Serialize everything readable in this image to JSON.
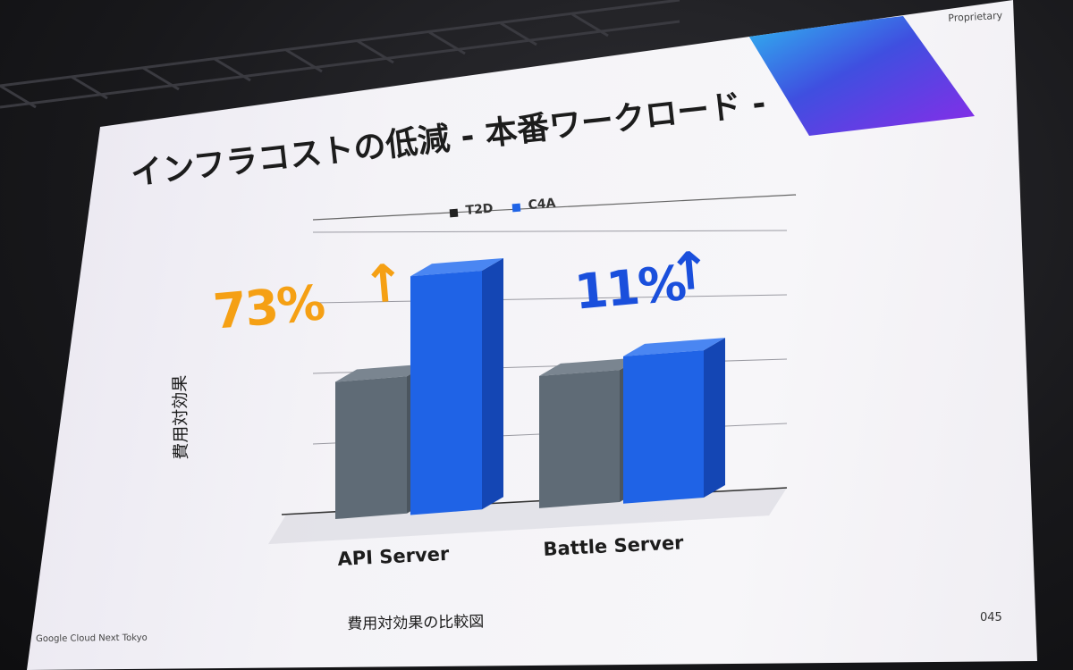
{
  "slide": {
    "proprietary": "Proprietary",
    "title": "インフラコストの低減 - 本番ワークロード -",
    "caption": "費用対効果の比較図",
    "footer": "Google Cloud Next Tokyo",
    "page_number": "045"
  },
  "colors": {
    "t2d": "#5f6b76",
    "c4a": "#1f63e6",
    "api_highlight": "#f5a014",
    "battle_highlight": "#1a4fdc"
  },
  "chart_data": {
    "type": "bar",
    "title": "",
    "ylabel": "費用対効果",
    "xlabel": "",
    "categories": [
      "API Server",
      "Battle Server"
    ],
    "series": [
      {
        "name": "T2D",
        "values": [
          1.0,
          1.0
        ]
      },
      {
        "name": "C4A",
        "values": [
          1.73,
          1.11
        ]
      }
    ],
    "ylim": [
      0,
      2
    ],
    "grid": true,
    "legend": "top",
    "annotations": [
      {
        "category": "API Server",
        "text": "73%",
        "arrow": "↑"
      },
      {
        "category": "Battle Server",
        "text": "11%",
        "arrow": "↑"
      }
    ]
  }
}
